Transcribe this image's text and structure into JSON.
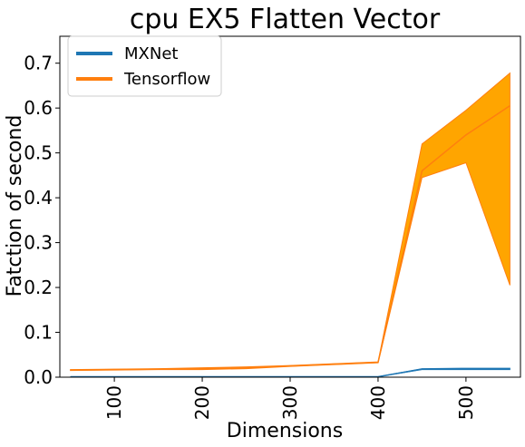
{
  "chart_data": {
    "type": "line",
    "title": "cpu EX5 Flatten Vector",
    "xlabel": "Dimensions",
    "ylabel": "Fatction of second",
    "xlim": [
      38,
      562
    ],
    "ylim": [
      0,
      0.76
    ],
    "x": [
      50,
      100,
      150,
      200,
      250,
      300,
      350,
      400,
      450,
      500,
      550
    ],
    "xticks": [
      100,
      200,
      300,
      400,
      500
    ],
    "xtick_labels": [
      "100",
      "200",
      "300",
      "400",
      "500"
    ],
    "yticks": [
      0.0,
      0.1,
      0.2,
      0.3,
      0.4,
      0.5,
      0.6,
      0.7
    ],
    "ytick_labels": [
      "0.0",
      "0.1",
      "0.2",
      "0.3",
      "0.4",
      "0.5",
      "0.6",
      "0.7"
    ],
    "grid": false,
    "legend_position": "top-left",
    "series": [
      {
        "name": "MXNet",
        "color": "#1f77b4",
        "values": [
          0.001,
          0.001,
          0.001,
          0.001,
          0.001,
          0.001,
          0.001,
          0.001,
          0.018,
          0.018,
          0.018
        ],
        "band_low": [
          0.001,
          0.001,
          0.001,
          0.001,
          0.001,
          0.001,
          0.001,
          0.001,
          0.017,
          0.017,
          0.017
        ],
        "band_high": [
          0.001,
          0.001,
          0.001,
          0.001,
          0.001,
          0.001,
          0.001,
          0.001,
          0.019,
          0.02,
          0.02
        ]
      },
      {
        "name": "Tensorflow",
        "color": "#ff7f0e",
        "band_color": "#ffa500",
        "values": [
          0.016,
          0.017,
          0.018,
          0.019,
          0.021,
          0.025,
          0.029,
          0.033,
          0.46,
          0.54,
          0.605
        ],
        "band_low": [
          0.015,
          0.016,
          0.017,
          0.017,
          0.019,
          0.024,
          0.028,
          0.032,
          0.445,
          0.478,
          0.205
        ],
        "band_high": [
          0.017,
          0.018,
          0.019,
          0.021,
          0.023,
          0.026,
          0.03,
          0.034,
          0.52,
          0.595,
          0.678
        ]
      }
    ]
  }
}
